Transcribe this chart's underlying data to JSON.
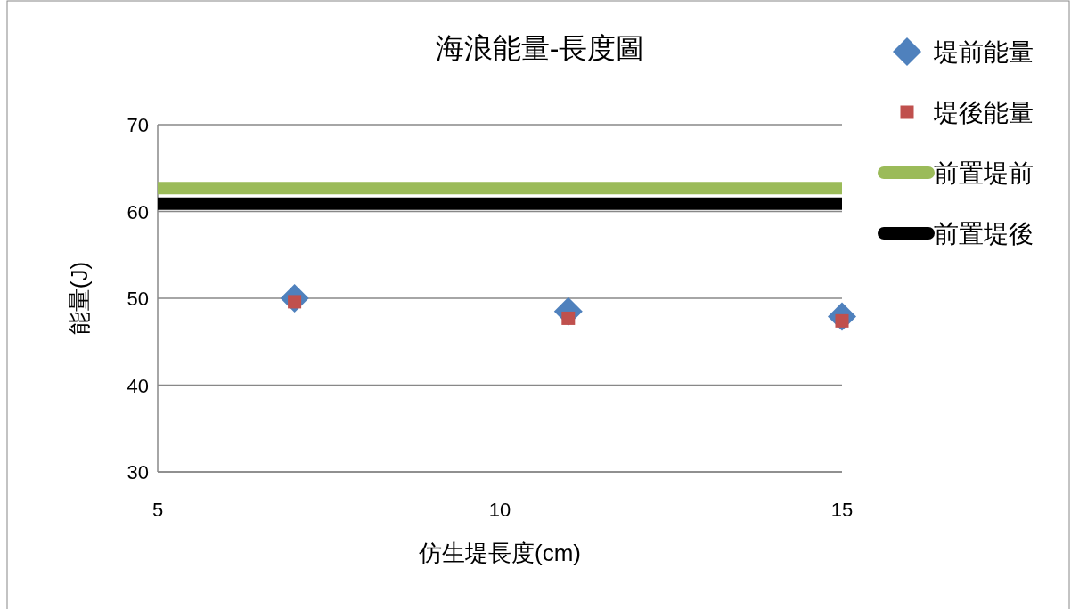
{
  "chart_data": {
    "type": "scatter",
    "title": "海浪能量-長度圖",
    "xlabel": "仿生堤長度(cm)",
    "ylabel": "能量(J)",
    "xlim": [
      5,
      15
    ],
    "xticks": [
      5,
      10,
      15
    ],
    "ylim": [
      30,
      70
    ],
    "yticks": [
      30,
      40,
      50,
      60,
      70
    ],
    "grid": "y",
    "legend": "right",
    "series": [
      {
        "name": "堤前能量",
        "color": "#4f81bd",
        "marker": "diamond",
        "x": [
          7,
          11,
          15
        ],
        "values": [
          50.0,
          48.5,
          47.9
        ]
      },
      {
        "name": "堤後能量",
        "color": "#c0504d",
        "marker": "square",
        "x": [
          7,
          11,
          15
        ],
        "values": [
          49.6,
          47.7,
          47.4
        ]
      },
      {
        "name": "前置堤前",
        "color": "#9bbb59",
        "type": "line",
        "x": [
          5,
          15
        ],
        "values": [
          62.7,
          62.7
        ]
      },
      {
        "name": "前置堤後",
        "color": "#000000",
        "type": "line",
        "x": [
          5,
          15
        ],
        "values": [
          60.9,
          60.9
        ]
      }
    ]
  }
}
